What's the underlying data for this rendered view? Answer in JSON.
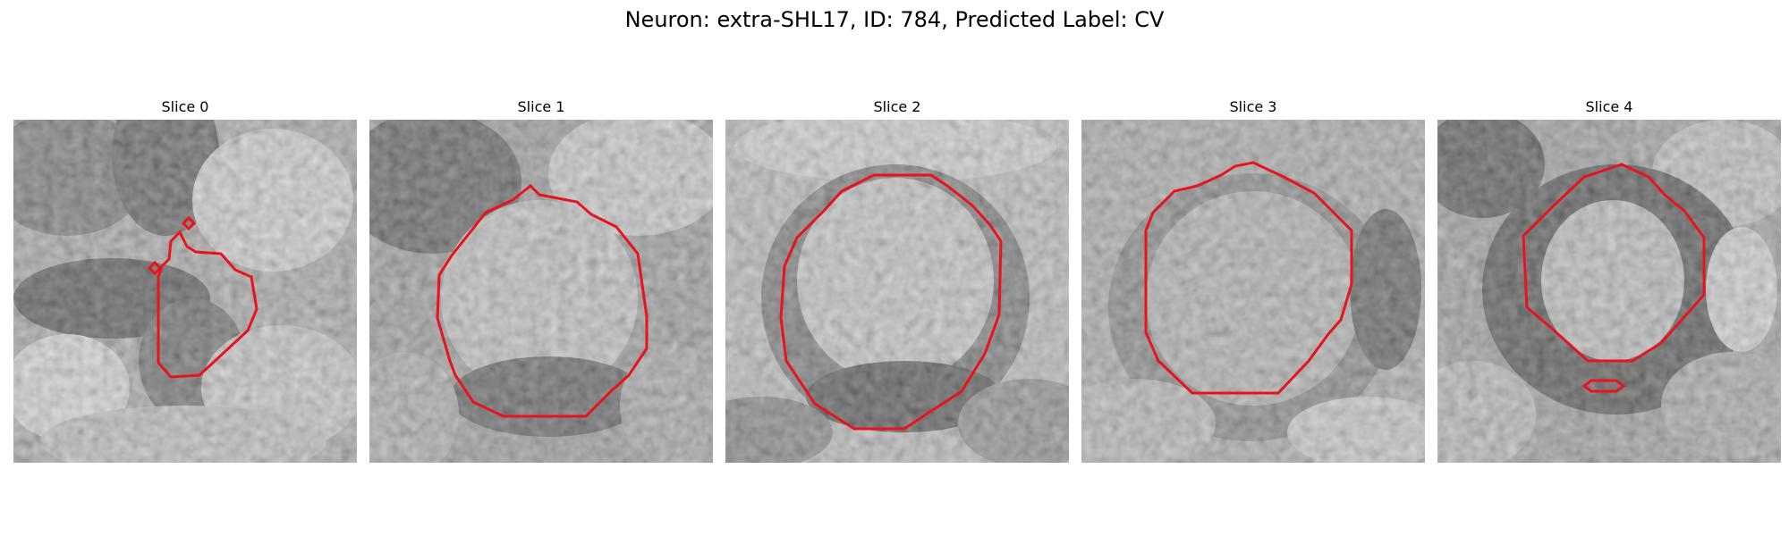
{
  "figure": {
    "title": "Neuron: extra-SHL17, ID: 784, Predicted Label: CV"
  },
  "panels": [
    {
      "title": "Slice 0",
      "contour_color": "#e8141c"
    },
    {
      "title": "Slice 1",
      "contour_color": "#e8141c"
    },
    {
      "title": "Slice 2",
      "contour_color": "#e8141c"
    },
    {
      "title": "Slice 3",
      "contour_color": "#e8141c"
    },
    {
      "title": "Slice 4",
      "contour_color": "#e8141c"
    }
  ]
}
